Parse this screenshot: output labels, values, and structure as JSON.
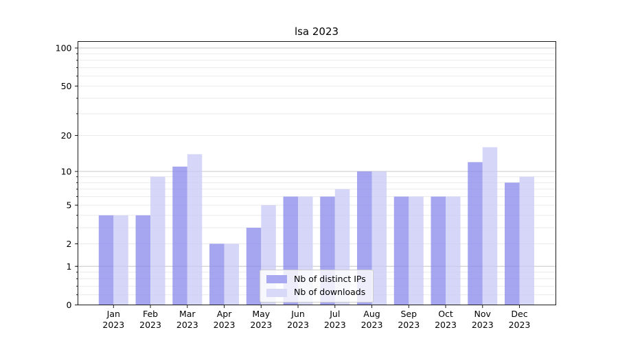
{
  "chart_data": {
    "type": "bar",
    "title": "lsa 2023",
    "categories": [
      "Jan",
      "Feb",
      "Mar",
      "Apr",
      "May",
      "Jun",
      "Jul",
      "Aug",
      "Sep",
      "Oct",
      "Nov",
      "Dec"
    ],
    "category_sublabel": "2023",
    "series": [
      {
        "name": "Nb of distinct IPs",
        "key": "distinct-ips",
        "color": "#a9a9f1",
        "fill": "#8c8cec",
        "fill_opacity": 0.78,
        "values": [
          4,
          4,
          11,
          2,
          3,
          6,
          6,
          10,
          6,
          6,
          12,
          8
        ]
      },
      {
        "name": "Nb of downloads",
        "key": "downloads",
        "color": "#d8d8f8",
        "fill": "#cbcbf6",
        "fill_opacity": 0.78,
        "values": [
          4,
          9,
          14,
          2,
          5,
          6,
          7,
          10,
          6,
          6,
          16,
          9
        ]
      }
    ],
    "y_scale": "log10(1+v)",
    "ylim": [
      0,
      114
    ],
    "y_ticks": [
      {
        "value": 0,
        "label": "0"
      },
      {
        "value": 1,
        "label": "1"
      },
      {
        "value": 2,
        "label": "2"
      },
      {
        "value": 5,
        "label": "5"
      },
      {
        "value": 10,
        "label": "10"
      },
      {
        "value": 20,
        "label": "20"
      },
      {
        "value": 50,
        "label": "50"
      },
      {
        "value": 100,
        "label": "100"
      }
    ],
    "grid": {
      "minor_values": [
        0.2,
        0.4,
        0.6,
        0.8,
        1,
        2,
        3,
        4,
        5,
        6,
        7,
        8,
        9,
        20,
        30,
        40,
        50,
        60,
        70,
        80,
        90
      ],
      "major_values": [
        1,
        10,
        100
      ],
      "minor_color": "#eaeaea",
      "major_color": "#c9c9c9"
    },
    "legend": {
      "position": "lower center"
    },
    "axis": {
      "spine_color": "#1a1a1a",
      "tick_color": "#1a1a1a",
      "tick_label_color": "#000000"
    }
  }
}
